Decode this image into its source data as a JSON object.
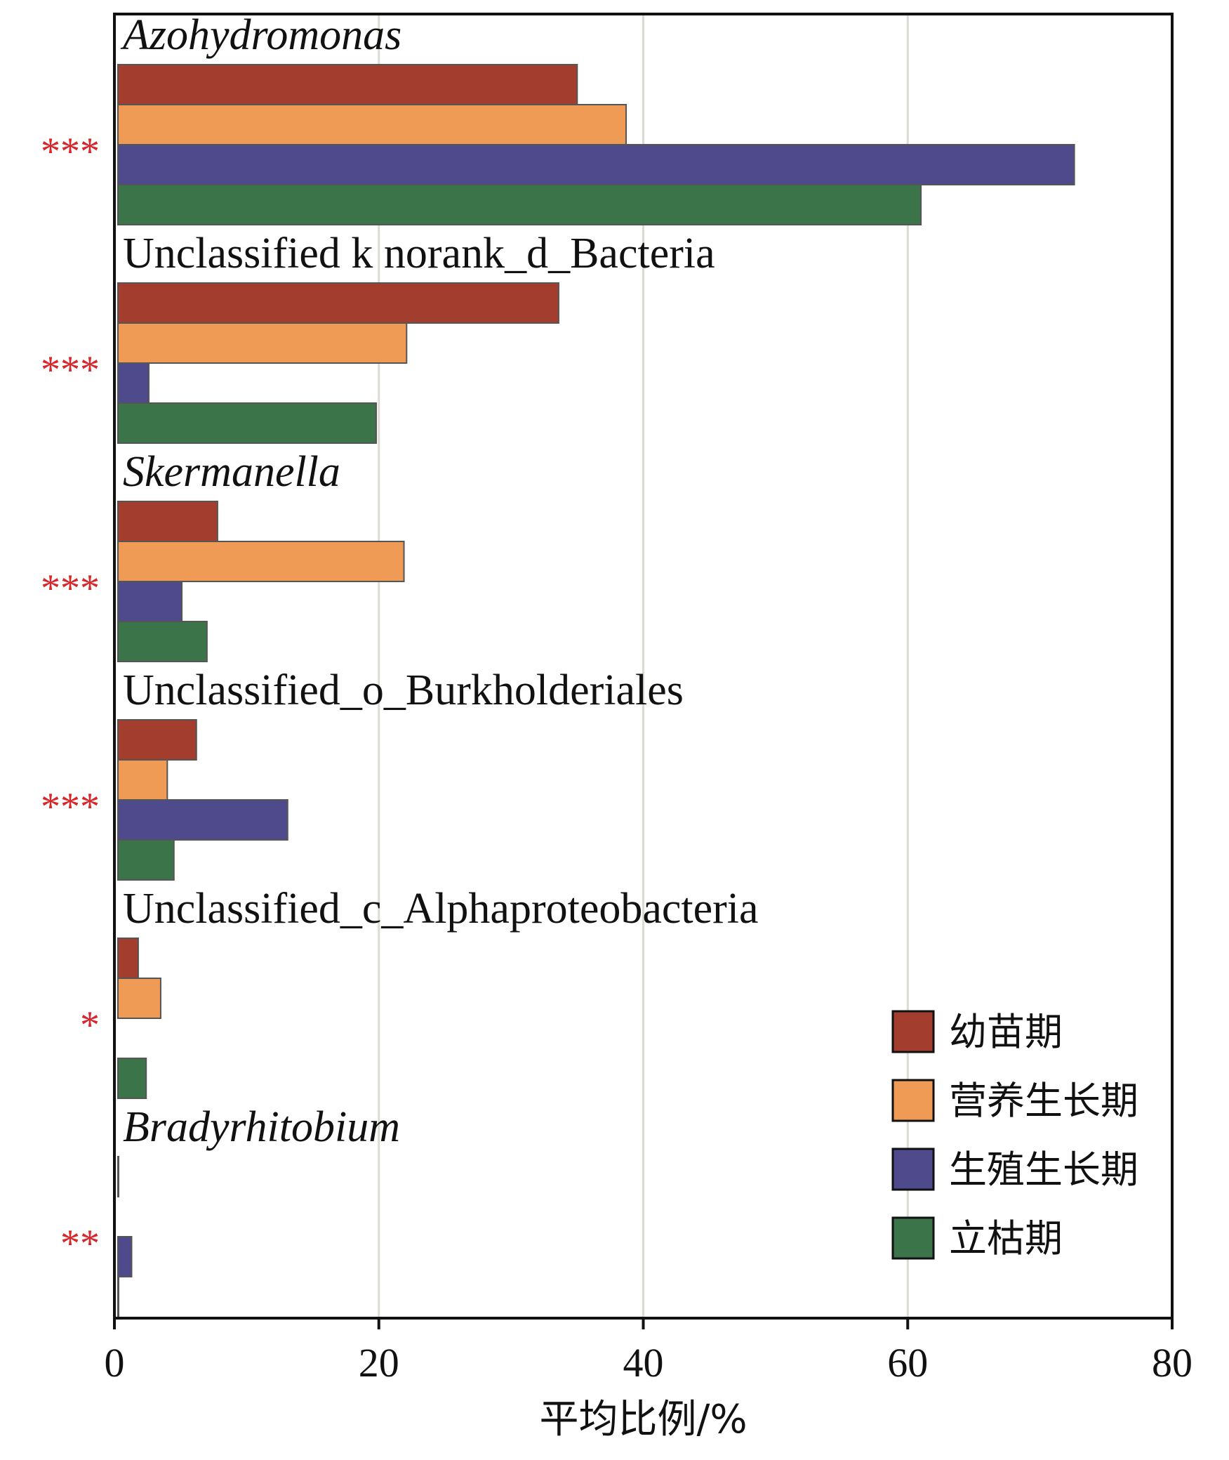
{
  "chart_data": {
    "type": "bar",
    "orientation": "horizontal",
    "xlabel": "平均比例/%",
    "xlim": [
      0,
      80
    ],
    "xticks": [
      0,
      20,
      40,
      60,
      80
    ],
    "grid": "vertical",
    "legend_position": "bottom-right",
    "categories": [
      "Azohydromonas",
      "Unclassified k norank_d_Bacteria",
      "Skermanella",
      "Unclassified_o_Burkholderiales",
      "Unclassified_c_Alphaproteobacteria",
      "Bradyrhitobium"
    ],
    "italic_categories": [
      true,
      false,
      true,
      false,
      false,
      true
    ],
    "significance": [
      "***",
      "***",
      "***",
      "***",
      "*",
      "**"
    ],
    "series": [
      {
        "name": "幼苗期",
        "color": "#a33e2f",
        "values": [
          35.0,
          33.6,
          7.8,
          6.2,
          1.8,
          0.3
        ]
      },
      {
        "name": "营养生长期",
        "color": "#ef9a55",
        "values": [
          38.7,
          22.1,
          21.9,
          4.0,
          3.5,
          0
        ]
      },
      {
        "name": "生殖生长期",
        "color": "#4f4a8b",
        "values": [
          72.6,
          2.6,
          5.1,
          13.1,
          0,
          1.3
        ]
      },
      {
        "name": "立枯期",
        "color": "#3b7448",
        "values": [
          61.0,
          19.8,
          7.0,
          4.5,
          2.4,
          0.2
        ]
      }
    ]
  }
}
